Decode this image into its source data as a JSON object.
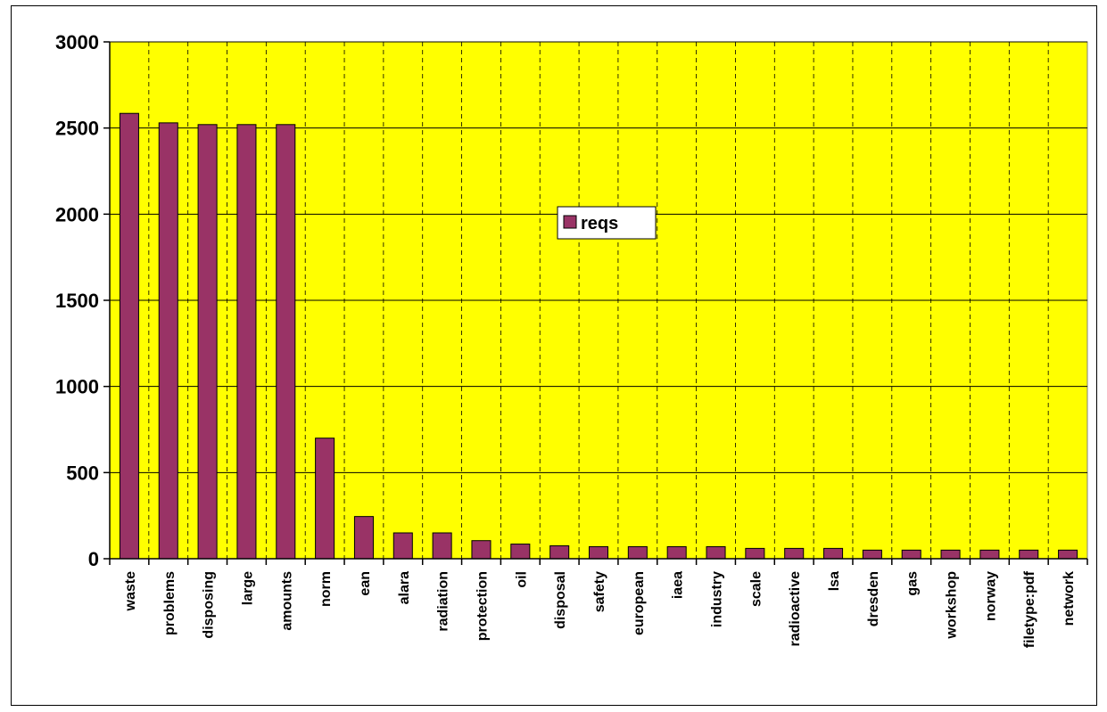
{
  "chart_data": {
    "type": "bar",
    "title": "",
    "xlabel": "",
    "ylabel": "",
    "ylim": [
      0,
      3000
    ],
    "yticks": [
      0,
      500,
      1000,
      1500,
      2000,
      2500,
      3000
    ],
    "grid": "on",
    "legend_placement": "center",
    "categories": [
      "waste",
      "problems",
      "disposing",
      "large",
      "amounts",
      "norm",
      "ean",
      "alara",
      "radiation",
      "protection",
      "oil",
      "disposal",
      "safety",
      "european",
      "iaea",
      "industry",
      "scale",
      "radioactive",
      "lsa",
      "dresden",
      "gas",
      "workshop",
      "norway",
      "filetype:pdf",
      "network"
    ],
    "series": [
      {
        "name": "reqs",
        "color": "#993366",
        "values": [
          2585,
          2530,
          2520,
          2520,
          2520,
          700,
          245,
          150,
          150,
          105,
          85,
          75,
          70,
          70,
          70,
          70,
          60,
          60,
          60,
          50,
          50,
          50,
          50,
          50,
          50
        ]
      }
    ],
    "colors": {
      "plot_background": "#ffff00",
      "bar_fill": "#993366",
      "frame": "#000000"
    }
  }
}
